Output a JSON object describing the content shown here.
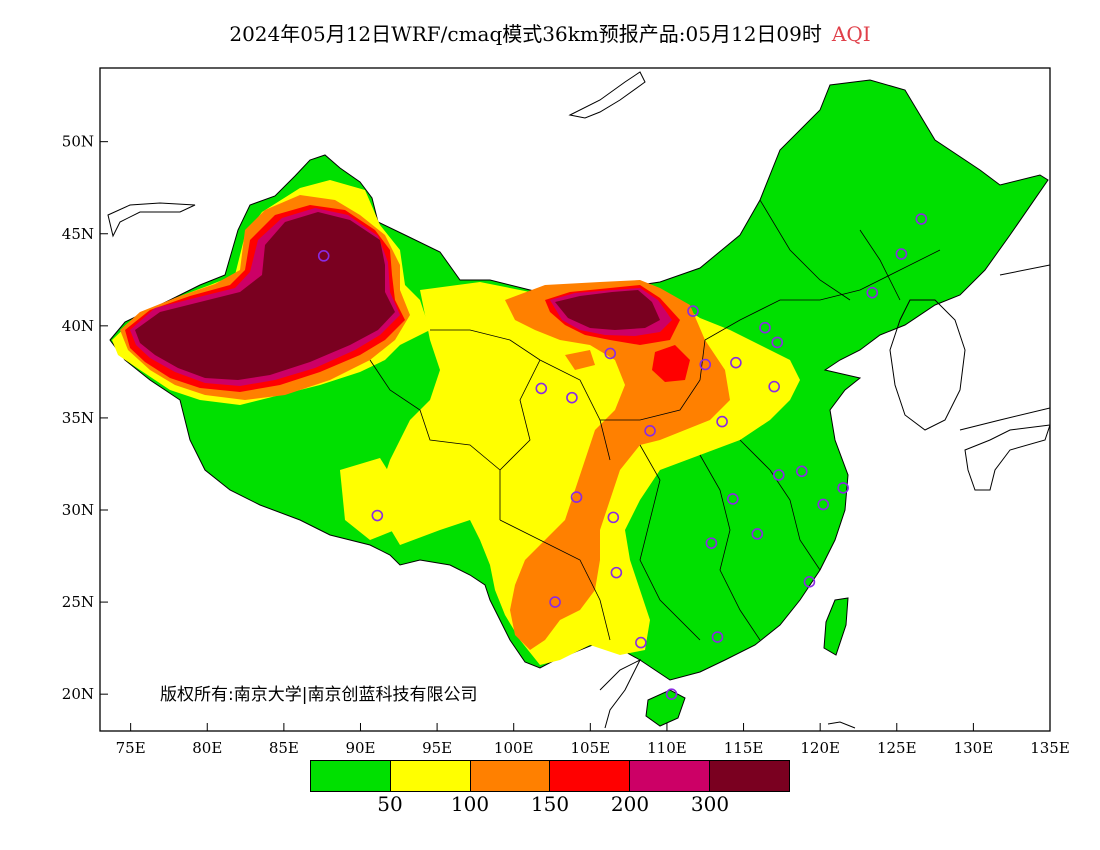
{
  "title": {
    "main": "2024年05月12日WRF/cmaq模式36km预报产品:05月12日09时",
    "variable": "AQI",
    "variable_color": "#e0404a"
  },
  "axes": {
    "lon_ticks": [
      "75E",
      "80E",
      "85E",
      "90E",
      "95E",
      "100E",
      "105E",
      "110E",
      "115E",
      "120E",
      "125E",
      "130E",
      "135E"
    ],
    "lat_ticks": [
      "20N",
      "25N",
      "30N",
      "35N",
      "40N",
      "45N",
      "50N"
    ],
    "lon_range": [
      73,
      135
    ],
    "lat_range": [
      18,
      54
    ]
  },
  "copyright": "版权所有:南京大学|南京创蓝科技有限公司",
  "legend": {
    "colors": [
      "#00e000",
      "#ffff00",
      "#ff8000",
      "#ff0000",
      "#cc0066",
      "#7a0020"
    ],
    "labels": [
      "50",
      "100",
      "150",
      "200",
      "300"
    ]
  },
  "stations": [
    {
      "lon": 87.6,
      "lat": 43.8
    },
    {
      "lon": 101.8,
      "lat": 36.6
    },
    {
      "lon": 103.8,
      "lat": 36.1
    },
    {
      "lon": 106.3,
      "lat": 38.5
    },
    {
      "lon": 111.7,
      "lat": 40.8
    },
    {
      "lon": 112.5,
      "lat": 37.9
    },
    {
      "lon": 114.5,
      "lat": 38.0
    },
    {
      "lon": 116.4,
      "lat": 39.9
    },
    {
      "lon": 117.2,
      "lat": 39.1
    },
    {
      "lon": 117.0,
      "lat": 36.7
    },
    {
      "lon": 113.6,
      "lat": 34.8
    },
    {
      "lon": 108.9,
      "lat": 34.3
    },
    {
      "lon": 104.1,
      "lat": 30.7
    },
    {
      "lon": 106.5,
      "lat": 29.6
    },
    {
      "lon": 106.7,
      "lat": 26.6
    },
    {
      "lon": 102.7,
      "lat": 25.0
    },
    {
      "lon": 108.3,
      "lat": 22.8
    },
    {
      "lon": 113.3,
      "lat": 23.1
    },
    {
      "lon": 110.3,
      "lat": 20.0
    },
    {
      "lon": 112.9,
      "lat": 28.2
    },
    {
      "lon": 114.3,
      "lat": 30.6
    },
    {
      "lon": 115.9,
      "lat": 28.7
    },
    {
      "lon": 117.3,
      "lat": 31.9
    },
    {
      "lon": 118.8,
      "lat": 32.1
    },
    {
      "lon": 120.2,
      "lat": 30.3
    },
    {
      "lon": 121.5,
      "lat": 31.2
    },
    {
      "lon": 119.3,
      "lat": 26.1
    },
    {
      "lon": 123.4,
      "lat": 41.8
    },
    {
      "lon": 125.3,
      "lat": 43.9
    },
    {
      "lon": 126.6,
      "lat": 45.8
    },
    {
      "lon": 91.1,
      "lat": 29.7
    }
  ]
}
